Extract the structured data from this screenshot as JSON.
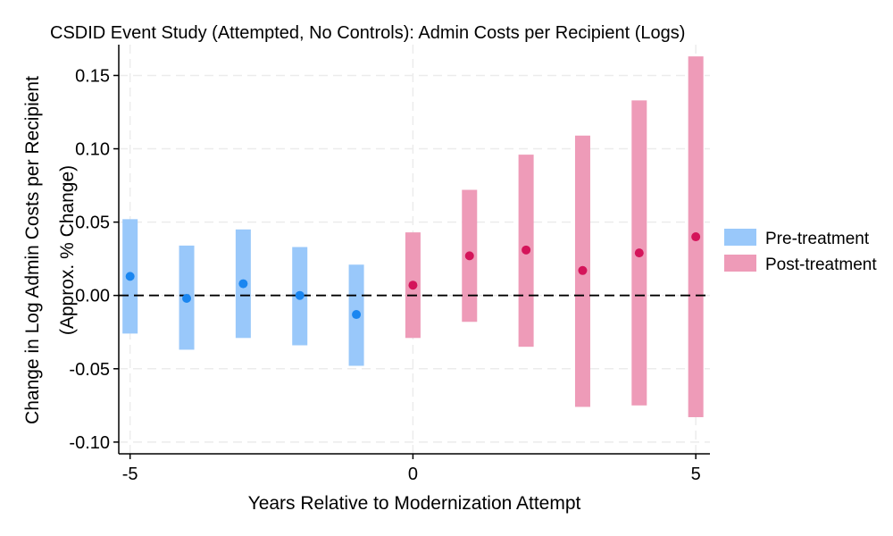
{
  "chart_data": {
    "type": "scatter",
    "title": "CSDID Event Study (Attempted, No Controls): Admin Costs per Recipient (Logs)",
    "xlabel": "Years Relative to Modernization Attempt",
    "ylabel_line1": "Change in Log Admin Costs per Recipient",
    "ylabel_line2": "(Approx. % Change)",
    "xlim": [
      -5.2,
      5.25
    ],
    "ylim": [
      -0.108,
      0.171
    ],
    "xticks": [
      -5,
      0,
      5
    ],
    "xtick_labels": [
      "-5",
      "0",
      "5"
    ],
    "yticks": [
      -0.1,
      -0.05,
      0.0,
      0.05,
      0.1,
      0.15
    ],
    "ytick_labels": [
      "-0.10",
      "-0.05",
      "0.00",
      "0.05",
      "0.10",
      "0.15"
    ],
    "grid": true,
    "reference_line_y": 0,
    "legend_position": "right",
    "series": [
      {
        "name": "Pre-treatment",
        "color": "#99c8fa",
        "point_color": "#1a86f0",
        "x": [
          -5,
          -4,
          -3,
          -2,
          -1
        ],
        "y": [
          0.013,
          -0.002,
          0.008,
          0.0,
          -0.013
        ],
        "ci_low": [
          -0.026,
          -0.037,
          -0.029,
          -0.034,
          -0.048
        ],
        "ci_high": [
          0.052,
          0.034,
          0.045,
          0.033,
          0.021
        ]
      },
      {
        "name": "Post-treatment",
        "color": "#ee9bb8",
        "point_color": "#d4145a",
        "x": [
          0,
          1,
          2,
          3,
          4,
          5
        ],
        "y": [
          0.007,
          0.027,
          0.031,
          0.017,
          0.029,
          0.04
        ],
        "ci_low": [
          -0.029,
          -0.018,
          -0.035,
          -0.076,
          -0.075,
          -0.083
        ],
        "ci_high": [
          0.043,
          0.072,
          0.096,
          0.109,
          0.133,
          0.163
        ]
      }
    ]
  }
}
